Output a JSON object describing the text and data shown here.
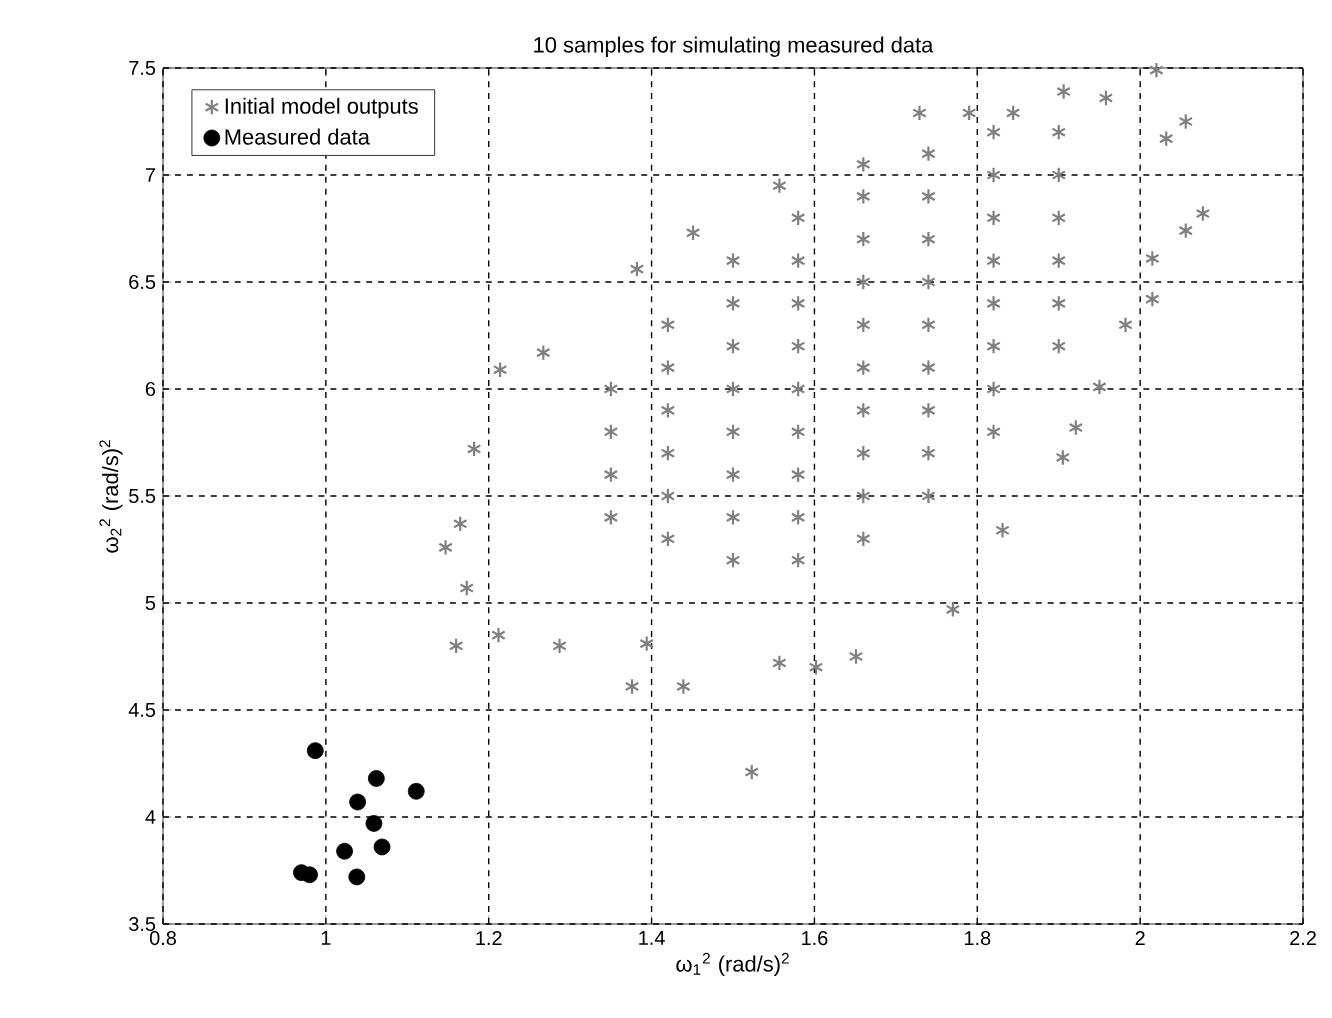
{
  "chart_data": {
    "type": "scatter",
    "title": "10 samples for simulating measured data",
    "xlabel": "ω$_{1}$$^{2}$ (rad/s)$^{2}$",
    "ylabel": "ω$_{2}$$^{2}$ (rad/s)$^{2}$",
    "xlim": [
      0.8,
      2.2
    ],
    "ylim": [
      3.5,
      7.5
    ],
    "xticks": [
      0.8,
      1,
      1.2,
      1.4,
      1.6,
      1.8,
      2,
      2.2
    ],
    "yticks": [
      3.5,
      4,
      4.5,
      5,
      5.5,
      6,
      6.5,
      7,
      7.5
    ],
    "grid": true,
    "legend": "top left",
    "series": [
      {
        "name": "Initial model outputs",
        "color": "#808080",
        "marker": "cross",
        "x": [
          2.02,
          1.906,
          2.056,
          2.077,
          2.056,
          2.015,
          1.982,
          1.95,
          1.921,
          1.905,
          1.831,
          1.77,
          1.651,
          1.602,
          1.557,
          1.523,
          1.439,
          1.376,
          1.394,
          1.287,
          1.212,
          1.16,
          1.173,
          1.147,
          1.165,
          1.182,
          1.214,
          1.267,
          1.382,
          1.451,
          1.557,
          1.729,
          1.79,
          1.844,
          1.958,
          2.032,
          2.015,
          1.35,
          1.35,
          1.35,
          1.35,
          1.42,
          1.42,
          1.42,
          1.42,
          1.42,
          1.42,
          1.5,
          1.5,
          1.5,
          1.5,
          1.5,
          1.5,
          1.5,
          1.5,
          1.58,
          1.58,
          1.58,
          1.58,
          1.58,
          1.58,
          1.58,
          1.58,
          1.58,
          1.66,
          1.66,
          1.66,
          1.66,
          1.66,
          1.66,
          1.66,
          1.66,
          1.66,
          1.66,
          1.74,
          1.74,
          1.74,
          1.74,
          1.74,
          1.74,
          1.74,
          1.74,
          1.74,
          1.82,
          1.82,
          1.82,
          1.82,
          1.82,
          1.82,
          1.82,
          1.82,
          1.9,
          1.9,
          1.9,
          1.9,
          1.9,
          1.9
        ],
        "values": [
          7.49,
          7.39,
          7.25,
          6.82,
          6.74,
          6.42,
          6.3,
          6.01,
          5.82,
          5.68,
          5.34,
          4.97,
          4.75,
          4.7,
          4.72,
          4.21,
          4.61,
          4.61,
          4.81,
          4.8,
          4.85,
          4.8,
          5.07,
          5.26,
          5.37,
          5.72,
          6.09,
          6.17,
          6.56,
          6.73,
          6.95,
          7.29,
          7.29,
          7.29,
          7.36,
          7.17,
          6.61,
          5.4,
          5.6,
          5.8,
          6.0,
          5.3,
          5.5,
          5.7,
          5.9,
          6.1,
          6.3,
          5.2,
          5.4,
          5.6,
          5.8,
          6.0,
          6.2,
          6.4,
          6.6,
          5.2,
          5.4,
          5.6,
          5.8,
          6.0,
          6.2,
          6.4,
          6.6,
          6.8,
          5.3,
          5.5,
          5.7,
          5.9,
          6.1,
          6.3,
          6.5,
          6.7,
          6.9,
          7.05,
          5.5,
          5.7,
          5.9,
          6.1,
          6.3,
          6.5,
          6.7,
          6.9,
          7.1,
          5.8,
          6.0,
          6.2,
          6.4,
          6.6,
          6.8,
          7.0,
          7.2,
          6.2,
          6.4,
          6.6,
          6.8,
          7.0,
          7.2
        ]
      },
      {
        "name": "Measured data",
        "color": "#000000",
        "marker": "circle",
        "x": [
          0.987,
          1.062,
          1.111,
          1.039,
          1.059,
          1.069,
          1.023,
          0.97,
          0.98,
          1.038
        ],
        "values": [
          4.31,
          4.18,
          4.12,
          4.07,
          3.97,
          3.86,
          3.84,
          3.74,
          3.73,
          3.72
        ]
      }
    ]
  }
}
